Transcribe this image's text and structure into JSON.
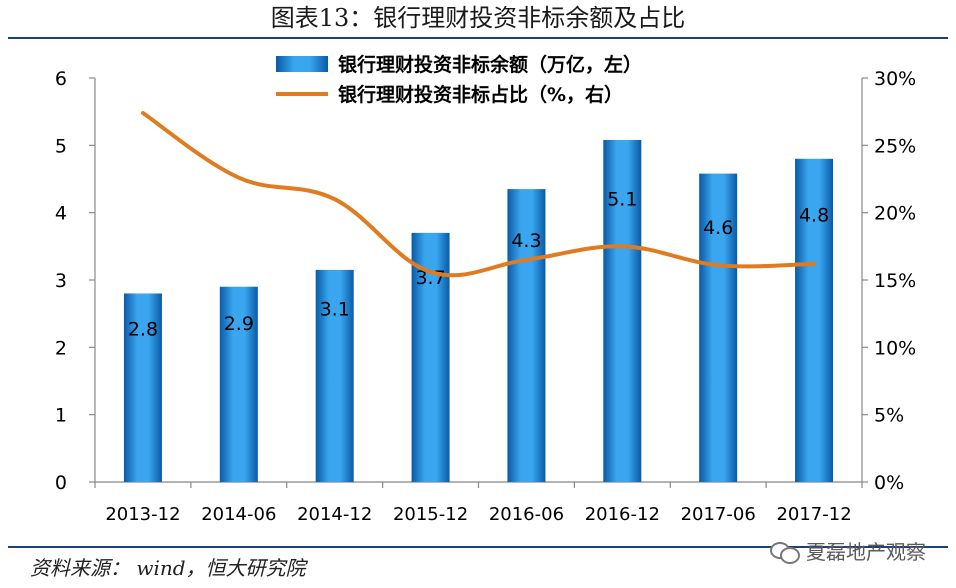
{
  "title": "图表13：银行理财投资非标余额及占比",
  "source": "资料来源：  wind，恒大研究院",
  "watermark": {
    "text": "夏磊地产观察",
    "icon": "wechat-bubble-icon"
  },
  "colors": {
    "bar": "#1f8ee0",
    "bar_edge": "#0b5fa8",
    "line": "#e07b1f",
    "axis": "#888888",
    "rule": "#1f3f7a"
  },
  "chart_data": {
    "type": "bar",
    "title": "图表13：银行理财投资非标余额及占比",
    "categories": [
      "2013-12",
      "2014-06",
      "2014-12",
      "2015-12",
      "2016-06",
      "2016-12",
      "2017-06",
      "2017-12"
    ],
    "series": [
      {
        "name": "银行理财投资非标余额（万亿，左）",
        "type": "bar",
        "axis": "left",
        "values": [
          2.8,
          2.9,
          3.15,
          3.7,
          4.35,
          5.08,
          4.58,
          4.8
        ],
        "labels": [
          "2.8",
          "2.9",
          "3.1",
          "3.7",
          "4.3",
          "5.1",
          "4.6",
          "4.8"
        ]
      },
      {
        "name": "银行理财投资非标占比（%，右）",
        "type": "line",
        "axis": "right",
        "values": [
          27.4,
          22.6,
          21.0,
          15.6,
          16.5,
          17.5,
          16.1,
          16.2
        ]
      }
    ],
    "y_left": {
      "ylim": [
        0,
        6
      ],
      "ticks": [
        "0",
        "1",
        "2",
        "3",
        "4",
        "5",
        "6"
      ]
    },
    "y_right": {
      "ylim": [
        0,
        30
      ],
      "ticks": [
        "0%",
        "5%",
        "10%",
        "15%",
        "20%",
        "25%",
        "30%"
      ]
    },
    "legend": "top-center",
    "grid": false
  }
}
